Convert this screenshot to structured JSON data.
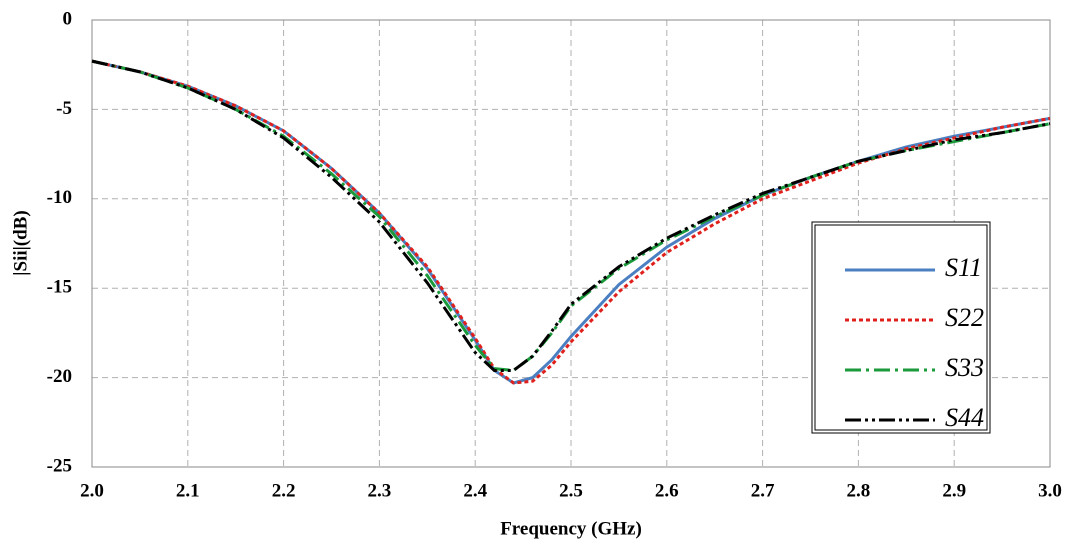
{
  "chart_data": {
    "type": "line",
    "x_label": "Frequency (GHz)",
    "y_label": "|Sii|(dB)",
    "x": [
      2.0,
      2.05,
      2.1,
      2.15,
      2.2,
      2.25,
      2.3,
      2.35,
      2.4,
      2.42,
      2.44,
      2.46,
      2.48,
      2.5,
      2.55,
      2.6,
      2.65,
      2.7,
      2.75,
      2.8,
      2.85,
      2.9,
      2.95,
      3.0
    ],
    "series": [
      {
        "name": "S11",
        "color": "#4a7fc1",
        "dash": "solid",
        "values": [
          -2.3,
          -2.9,
          -3.7,
          -4.8,
          -6.2,
          -8.3,
          -10.8,
          -13.9,
          -17.9,
          -19.6,
          -20.3,
          -20.0,
          -19.0,
          -17.7,
          -14.8,
          -12.7,
          -11.1,
          -9.8,
          -8.8,
          -7.9,
          -7.1,
          -6.5,
          -6.0,
          -5.5
        ]
      },
      {
        "name": "S22",
        "color": "#e0201c",
        "dash": "dot",
        "values": [
          -2.3,
          -2.9,
          -3.7,
          -4.8,
          -6.2,
          -8.3,
          -10.8,
          -13.8,
          -17.8,
          -19.5,
          -20.3,
          -20.2,
          -19.3,
          -18.0,
          -15.2,
          -13.0,
          -11.4,
          -10.0,
          -9.0,
          -8.0,
          -7.2,
          -6.6,
          -6.0,
          -5.5
        ]
      },
      {
        "name": "S33",
        "color": "#1a9a3a",
        "dash": "dashdot",
        "values": [
          -2.3,
          -2.9,
          -3.8,
          -5.0,
          -6.5,
          -8.6,
          -11.0,
          -14.3,
          -18.2,
          -19.5,
          -19.6,
          -18.8,
          -17.5,
          -16.0,
          -13.9,
          -12.3,
          -11.0,
          -9.8,
          -8.8,
          -7.9,
          -7.3,
          -6.8,
          -6.3,
          -5.8
        ]
      },
      {
        "name": "S44",
        "color": "#000000",
        "dash": "dashdotdot",
        "values": [
          -2.3,
          -2.9,
          -3.8,
          -5.0,
          -6.6,
          -8.8,
          -11.3,
          -14.7,
          -18.6,
          -19.6,
          -19.6,
          -18.8,
          -17.4,
          -15.9,
          -13.8,
          -12.2,
          -10.9,
          -9.7,
          -8.8,
          -7.9,
          -7.3,
          -6.7,
          -6.3,
          -5.8
        ]
      }
    ],
    "xlim": [
      2.0,
      3.0
    ],
    "xticks": [
      {
        "value": 2,
        "label": "2.0"
      },
      2.1,
      2.2,
      2.3,
      2.4,
      2.5,
      2.6,
      2.7,
      2.8,
      2.9,
      {
        "value": 3,
        "label": "3.0"
      }
    ],
    "ylim": [
      -25,
      0
    ],
    "yticks": [
      -25,
      -20,
      -15,
      -10,
      -5,
      0
    ],
    "grid": true,
    "legend": "center right"
  }
}
